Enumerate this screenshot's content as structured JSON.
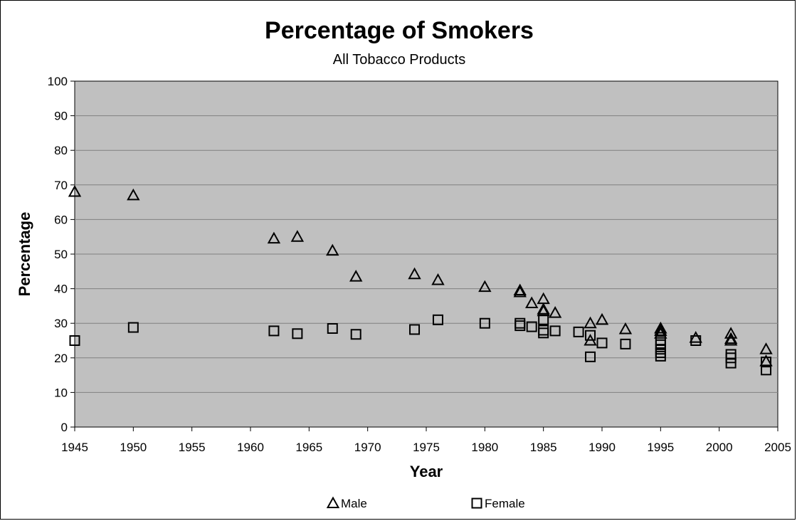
{
  "chart_data": {
    "type": "scatter",
    "title": "Percentage of Smokers",
    "subtitle": "All Tobacco Products",
    "xlabel": "Year",
    "ylabel": "Percentage",
    "xlim": [
      1945,
      2005
    ],
    "ylim": [
      0,
      100
    ],
    "xticks": [
      1945,
      1950,
      1955,
      1960,
      1965,
      1970,
      1975,
      1980,
      1985,
      1990,
      1995,
      2000,
      2005
    ],
    "yticks": [
      0,
      10,
      20,
      30,
      40,
      50,
      60,
      70,
      80,
      90,
      100
    ],
    "grid": true,
    "plot_background": "#c0c0c0",
    "legend_position": "bottom",
    "series": [
      {
        "name": "Male",
        "marker": "triangle",
        "points": [
          [
            1945,
            68
          ],
          [
            1950,
            67
          ],
          [
            1962,
            54.5
          ],
          [
            1964,
            55
          ],
          [
            1967,
            51
          ],
          [
            1969,
            43.5
          ],
          [
            1974,
            44.2
          ],
          [
            1976,
            42.5
          ],
          [
            1980,
            40.5
          ],
          [
            1983,
            39.5
          ],
          [
            1983,
            39
          ],
          [
            1984,
            35.8
          ],
          [
            1985,
            37
          ],
          [
            1985,
            34
          ],
          [
            1985,
            33.5
          ],
          [
            1986,
            33
          ],
          [
            1989,
            30
          ],
          [
            1989,
            25
          ],
          [
            1990,
            31
          ],
          [
            1992,
            28.3
          ],
          [
            1995,
            28.5
          ],
          [
            1995,
            27.8
          ],
          [
            1995,
            27
          ],
          [
            1998,
            25.8
          ],
          [
            2001,
            27
          ],
          [
            2001,
            25.5
          ],
          [
            2001,
            25
          ],
          [
            2004,
            22.5
          ],
          [
            2004,
            19
          ]
        ]
      },
      {
        "name": "Female",
        "marker": "square",
        "points": [
          [
            1945,
            25
          ],
          [
            1950,
            28.8
          ],
          [
            1962,
            27.8
          ],
          [
            1964,
            27
          ],
          [
            1967,
            28.5
          ],
          [
            1969,
            26.8
          ],
          [
            1974,
            28.2
          ],
          [
            1976,
            31
          ],
          [
            1980,
            30
          ],
          [
            1983,
            30
          ],
          [
            1983,
            29.3
          ],
          [
            1984,
            29
          ],
          [
            1985,
            31
          ],
          [
            1985,
            28
          ],
          [
            1985,
            27.2
          ],
          [
            1986,
            27.8
          ],
          [
            1988,
            27.5
          ],
          [
            1989,
            26.5
          ],
          [
            1989,
            20.3
          ],
          [
            1990,
            24.3
          ],
          [
            1992,
            24
          ],
          [
            1995,
            25
          ],
          [
            1995,
            23.8
          ],
          [
            1995,
            22.5
          ],
          [
            1995,
            21.5
          ],
          [
            1995,
            20.5
          ],
          [
            1998,
            25
          ],
          [
            2001,
            21
          ],
          [
            2001,
            20
          ],
          [
            2001,
            18.5
          ],
          [
            2004,
            18.8
          ],
          [
            2004,
            16.5
          ]
        ]
      }
    ]
  }
}
